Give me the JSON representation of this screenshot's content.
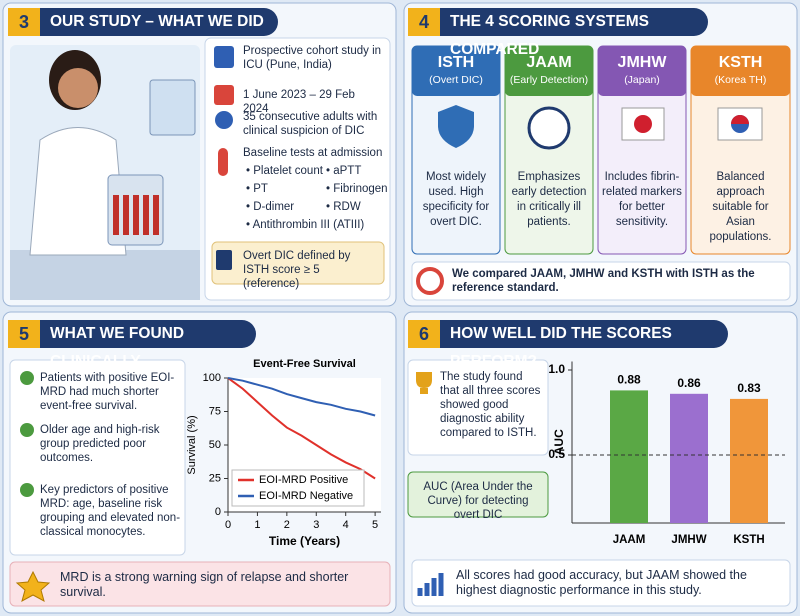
{
  "panels": {
    "study": {
      "number": "3",
      "title": "OUR STUDY – WHAT WE DID",
      "items": [
        "Prospective cohort study in ICU (Pune, India)",
        "1 June 2023 – 29 Feb 2024",
        "35 consecutive adults with clinical suspicion of DIC"
      ],
      "tests_heading": "Baseline tests at admission",
      "tests": [
        "Platelet count",
        "aPTT",
        "PT",
        "Fibrinogen",
        "D-dimer",
        "RDW",
        "Antithrombin III (ATIII)"
      ],
      "note": "Overt DIC defined by ISTH score ≥ 5 (reference)"
    },
    "systems": {
      "number": "4",
      "title": "THE 4 SCORING SYSTEMS COMPARED",
      "cards": [
        {
          "name": "ISTH",
          "subtitle": "(Overt DIC)",
          "description": "Most widely used. High specificity for overt DIC."
        },
        {
          "name": "JAAM",
          "subtitle": "(Early Detection)",
          "description": "Emphasizes early detection in critically ill patients."
        },
        {
          "name": "JMHW",
          "subtitle": "(Japan)",
          "description": "Includes fibrin-related markers for better sensitivity."
        },
        {
          "name": "KSTH",
          "subtitle": "(Korea TH)",
          "description": "Balanced approach suitable for Asian populations."
        }
      ],
      "footer": "We compared JAAM, JMHW and KSTH with ISTH as the reference standard."
    },
    "findings": {
      "number": "5",
      "title": "WHAT WE FOUND CLINICALLY",
      "bullets": [
        "Patients with positive EOI-MRD had much shorter event-free survival.",
        "Older age and high-risk group predicted poor outcomes.",
        "Key predictors of positive MRD: age, baseline risk grouping and elevated non-classical monocytes."
      ],
      "footer": "MRD is a strong warning sign of relapse and shorter survival."
    },
    "performance": {
      "number": "6",
      "title": "HOW WELL DID THE SCORES PERFORM?",
      "note": "The study found that all three scores showed good diagnostic ability compared to ISTH.",
      "auc_note": "AUC (Area Under the Curve) for detecting overt DIC",
      "footer": "All scores had good accuracy, but JAAM showed the highest diagnostic performance in this study."
    }
  },
  "chart_data": [
    {
      "type": "line",
      "title": "Event-Free Survival",
      "xlabel": "Time (Years)",
      "ylabel": "Survival (%)",
      "x": [
        0,
        0.5,
        1,
        1.5,
        2,
        2.5,
        3,
        3.5,
        4,
        4.5,
        5
      ],
      "series": [
        {
          "name": "EOI-MRD Positive",
          "color": "#e0312b",
          "values": [
            100,
            92,
            82,
            72,
            63,
            57,
            50,
            43,
            37,
            32,
            25
          ]
        },
        {
          "name": "EOI-MRD Negative",
          "color": "#2f5fb3",
          "values": [
            100,
            98,
            95,
            92,
            88,
            85,
            82,
            80,
            77,
            75,
            72
          ]
        }
      ],
      "xlim": [
        0,
        5.2
      ],
      "ylim": [
        0,
        100
      ],
      "xticks": [
        0,
        1,
        2,
        3,
        4,
        5
      ],
      "yticks": [
        0,
        25,
        50,
        75,
        100
      ]
    },
    {
      "type": "bar",
      "ylabel": "AUC",
      "categories": [
        "JAAM",
        "JMHW",
        "KSTH"
      ],
      "values": [
        0.88,
        0.86,
        0.83
      ],
      "colors": [
        "#5aa845",
        "#9b6fcf",
        "#f0963a"
      ],
      "ylim": [
        0.1,
        1.05
      ],
      "yticks": [
        0.5,
        {
          "value": 1,
          "label": "1.0"
        }
      ],
      "reference_line": 0.5
    }
  ]
}
